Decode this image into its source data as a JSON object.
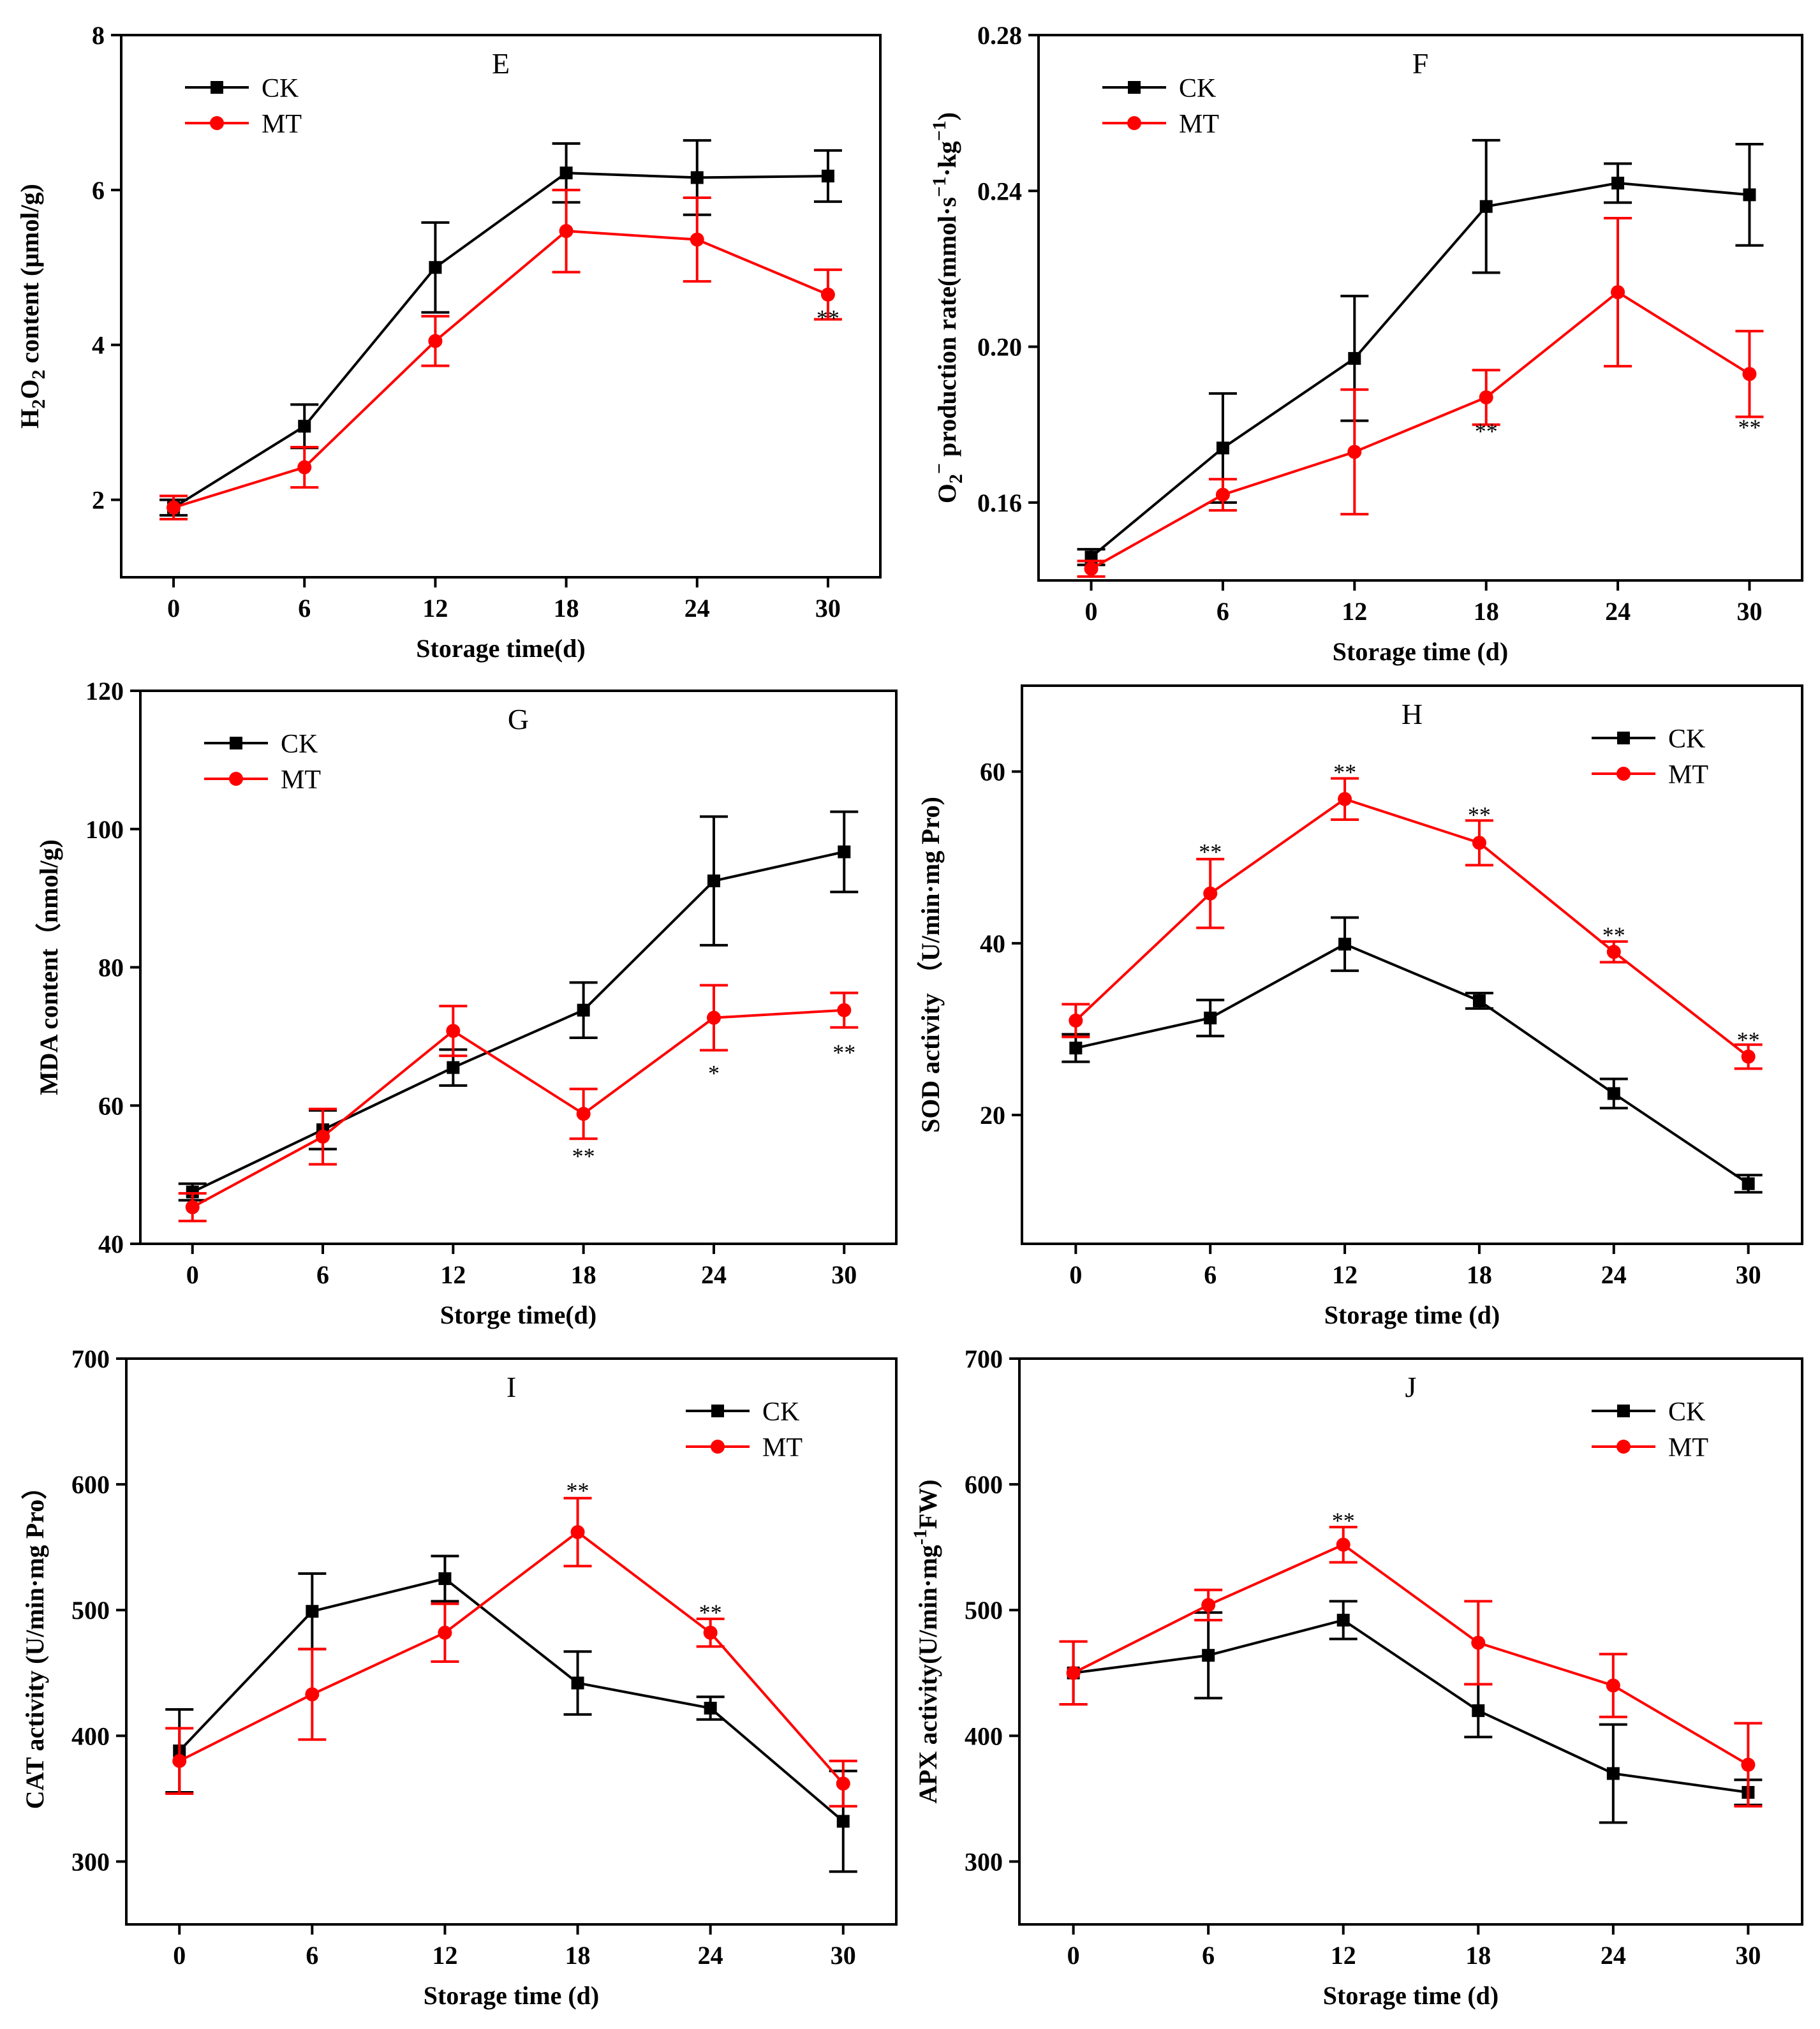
{
  "colors": {
    "CK": "#000000",
    "MT": "#ff0000"
  },
  "legend_names": {
    "CK": "CK",
    "MT": "MT"
  },
  "chart_data": [
    {
      "id": "E",
      "type": "line",
      "title": "E",
      "xlabel": "Storage time(d)",
      "ylabel": "H2O2 content (μmol/g)",
      "ylabel_parts": [
        {
          "t": "H"
        },
        {
          "t": "2",
          "sub": true
        },
        {
          "t": "O"
        },
        {
          "t": "2",
          "sub": true
        },
        {
          "t": " content (μmol/g)"
        }
      ],
      "x": [
        0,
        6,
        12,
        18,
        24,
        30
      ],
      "xlim": [
        -2.4,
        32.4
      ],
      "ylim": [
        1,
        8
      ],
      "yticks": [
        2,
        4,
        6,
        8
      ],
      "ytick_labels": [
        "2",
        "4",
        "6",
        "8"
      ],
      "legend_loc": "top-left",
      "series": [
        {
          "name": "CK",
          "marker": "square",
          "values": [
            1.9,
            2.95,
            5.0,
            6.22,
            6.16,
            6.18
          ],
          "errors": [
            0.1,
            0.28,
            0.58,
            0.38,
            0.48,
            0.33
          ]
        },
        {
          "name": "MT",
          "marker": "circle",
          "values": [
            1.9,
            2.42,
            4.05,
            5.47,
            5.36,
            4.65
          ],
          "errors": [
            0.15,
            0.26,
            0.32,
            0.53,
            0.54,
            0.32
          ]
        }
      ],
      "annotations": [
        {
          "x": 30,
          "y": 4.33,
          "label": "**"
        }
      ]
    },
    {
      "id": "F",
      "type": "line",
      "title": "F",
      "xlabel": "Storage time (d)",
      "ylabel": "O2− production rate(mmol·s−1·kg−1)",
      "ylabel_parts": [
        {
          "t": "O"
        },
        {
          "t": "2",
          "sub": true
        },
        {
          "t": "−",
          "sup": true
        },
        {
          "t": " production rate(mmol·s"
        },
        {
          "t": "−1",
          "sup": true
        },
        {
          "t": "·kg"
        },
        {
          "t": "−1",
          "sup": true
        },
        {
          "t": ")"
        }
      ],
      "x": [
        0,
        6,
        12,
        18,
        24,
        30
      ],
      "xlim": [
        -2.4,
        32.4
      ],
      "ylim": [
        0.14,
        0.28
      ],
      "yticks": [
        0.16,
        0.2,
        0.24,
        0.28
      ],
      "ytick_labels": [
        "0.16",
        "0.20",
        "0.24",
        "0.28"
      ],
      "legend_loc": "top-left",
      "series": [
        {
          "name": "CK",
          "marker": "square",
          "values": [
            0.146,
            0.174,
            0.197,
            0.236,
            0.242,
            0.239
          ],
          "errors": [
            0.002,
            0.014,
            0.016,
            0.017,
            0.005,
            0.013
          ]
        },
        {
          "name": "MT",
          "marker": "circle",
          "values": [
            0.143,
            0.162,
            0.173,
            0.187,
            0.214,
            0.193
          ],
          "errors": [
            0.002,
            0.004,
            0.016,
            0.007,
            0.019,
            0.011
          ]
        }
      ],
      "annotations": [
        {
          "x": 18,
          "y": 0.178,
          "label": "**"
        },
        {
          "x": 30,
          "y": 0.179,
          "label": "**"
        }
      ]
    },
    {
      "id": "G",
      "type": "line",
      "title": "G",
      "xlabel": "Storge time(d)",
      "ylabel": "MDA content（nmol/g)",
      "ylabel_parts": [
        {
          "t": "MDA content（nmol/g)"
        }
      ],
      "x": [
        0,
        6,
        12,
        18,
        24,
        30
      ],
      "xlim": [
        -2.4,
        32.4
      ],
      "ylim": [
        40,
        120
      ],
      "yticks": [
        40,
        60,
        80,
        100,
        120
      ],
      "ytick_labels": [
        "40",
        "60",
        "80",
        "100",
        "120"
      ],
      "legend_loc": "top-left",
      "series": [
        {
          "name": "CK",
          "marker": "square",
          "values": [
            47.5,
            56.5,
            65.5,
            73.8,
            92.5,
            96.7
          ],
          "errors": [
            1.2,
            2.8,
            2.6,
            4.0,
            9.3,
            5.8
          ]
        },
        {
          "name": "MT",
          "marker": "circle",
          "values": [
            45.3,
            55.5,
            70.8,
            58.8,
            72.7,
            73.8
          ],
          "errors": [
            2.0,
            4.0,
            3.6,
            3.6,
            4.7,
            2.5
          ]
        }
      ],
      "annotations": [
        {
          "x": 18,
          "y": 52.5,
          "label": "**"
        },
        {
          "x": 24,
          "y": 64.5,
          "label": "*"
        },
        {
          "x": 30,
          "y": 67.5,
          "label": "**"
        }
      ]
    },
    {
      "id": "H",
      "type": "line",
      "title": "H",
      "xlabel": "Storage time (d)",
      "ylabel": "SOD activity （U/min·mg Pro)",
      "ylabel_parts": [
        {
          "t": "SOD activity （U/min·mg Pro)"
        }
      ],
      "x": [
        0,
        6,
        12,
        18,
        24,
        30
      ],
      "xlim": [
        -2.4,
        32.4
      ],
      "ylim": [
        5,
        70
      ],
      "yticks": [
        20,
        40,
        60
      ],
      "ytick_labels": [
        "20",
        "40",
        "60"
      ],
      "legend_loc": "top-right",
      "series": [
        {
          "name": "CK",
          "marker": "square",
          "values": [
            27.8,
            31.3,
            39.9,
            33.3,
            22.5,
            12.0
          ],
          "errors": [
            1.6,
            2.1,
            3.1,
            0.9,
            1.7,
            1.0
          ]
        },
        {
          "name": "MT",
          "marker": "circle",
          "values": [
            31.0,
            45.8,
            56.8,
            51.7,
            39.0,
            26.8
          ],
          "errors": [
            1.9,
            4.0,
            2.4,
            2.6,
            1.2,
            1.4
          ]
        }
      ],
      "annotations": [
        {
          "x": 6,
          "y": 50.5,
          "label": "**"
        },
        {
          "x": 12,
          "y": 59.8,
          "label": "**"
        },
        {
          "x": 18,
          "y": 54.8,
          "label": "**"
        },
        {
          "x": 24,
          "y": 40.8,
          "label": "**"
        },
        {
          "x": 30,
          "y": 28.6,
          "label": "**"
        }
      ]
    },
    {
      "id": "I",
      "type": "line",
      "title": "I",
      "xlabel": "Storage time (d)",
      "ylabel": "CAT activity (U/min·mg Pro）",
      "ylabel_parts": [
        {
          "t": "CAT activity (U/min·mg Pro）"
        }
      ],
      "x": [
        0,
        6,
        12,
        18,
        24,
        30
      ],
      "xlim": [
        -2.4,
        32.4
      ],
      "ylim": [
        250,
        700
      ],
      "yticks": [
        300,
        400,
        500,
        600,
        700
      ],
      "ytick_labels": [
        "300",
        "400",
        "500",
        "600",
        "700"
      ],
      "legend_loc": "top-right",
      "series": [
        {
          "name": "CK",
          "marker": "square",
          "values": [
            388,
            499,
            525,
            442,
            422,
            332
          ],
          "errors": [
            33,
            30,
            18,
            25,
            9,
            40
          ]
        },
        {
          "name": "MT",
          "marker": "circle",
          "values": [
            380,
            433,
            482,
            562,
            482,
            362
          ],
          "errors": [
            26,
            36,
            23,
            27,
            11,
            18
          ]
        }
      ],
      "annotations": [
        {
          "x": 18,
          "y": 594,
          "label": "**"
        },
        {
          "x": 24,
          "y": 497,
          "label": "**"
        }
      ]
    },
    {
      "id": "J",
      "type": "line",
      "title": "J",
      "xlabel": "Storage time (d)",
      "ylabel": "APX activity(U/min·mg-1FW)",
      "ylabel_parts": [
        {
          "t": "APX activity(U/min·mg"
        },
        {
          "t": "-1",
          "sup": true
        },
        {
          "t": "FW)"
        }
      ],
      "x": [
        0,
        6,
        12,
        18,
        24,
        30
      ],
      "xlim": [
        -2.4,
        32.4
      ],
      "ylim": [
        250,
        700
      ],
      "yticks": [
        300,
        400,
        500,
        600,
        700
      ],
      "ytick_labels": [
        "300",
        "400",
        "500",
        "600",
        "700"
      ],
      "legend_loc": "top-right",
      "series": [
        {
          "name": "CK",
          "marker": "square",
          "values": [
            450,
            464,
            492,
            420,
            370,
            355
          ],
          "errors": [
            25,
            34,
            15,
            21,
            39,
            10
          ]
        },
        {
          "name": "MT",
          "marker": "circle",
          "values": [
            450,
            504,
            552,
            474,
            440,
            377
          ],
          "errors": [
            25,
            12,
            14,
            33,
            25,
            33
          ]
        }
      ],
      "annotations": [
        {
          "x": 12,
          "y": 570,
          "label": "**"
        }
      ]
    }
  ]
}
